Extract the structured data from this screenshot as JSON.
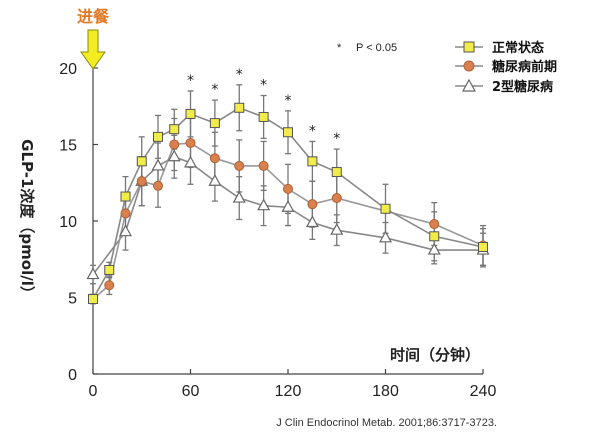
{
  "chart_data": {
    "type": "line",
    "xlabel": "时间（分钟）",
    "ylabel": "GLP-1浓度（pmol/l）",
    "xlim": [
      0,
      240
    ],
    "ylim": [
      0,
      20
    ],
    "x_ticks": [
      0,
      60,
      120,
      180,
      240
    ],
    "y_ticks": [
      0,
      5,
      10,
      15,
      20
    ],
    "grid": false,
    "legend_position": "top-right",
    "annotation_meal": "进餐",
    "significance_note": "P < 0.05",
    "significance_symbol": "*",
    "significance_x": [
      60,
      75,
      90,
      105,
      120,
      135,
      150
    ],
    "source": "J Clin Endocrinol Metab. 2001;86:3717-3723.",
    "series": [
      {
        "name": "正常状态",
        "marker": "square",
        "color": "#f2ec4a",
        "x": [
          0,
          10,
          20,
          30,
          40,
          50,
          60,
          75,
          90,
          105,
          120,
          135,
          150,
          180,
          210,
          240
        ],
        "y": [
          4.9,
          6.8,
          11.6,
          13.9,
          15.5,
          16.0,
          17.0,
          16.4,
          17.4,
          16.8,
          15.8,
          13.9,
          13.2,
          10.8,
          9.0,
          8.3
        ],
        "err": [
          0.3,
          0.5,
          1.3,
          1.6,
          1.4,
          1.3,
          1.5,
          1.5,
          1.5,
          1.4,
          1.4,
          1.3,
          1.5,
          1.6,
          1.6,
          1.2
        ]
      },
      {
        "name": "糖尿病前期",
        "marker": "circle",
        "color": "#d98050",
        "x": [
          0,
          10,
          20,
          30,
          40,
          50,
          60,
          75,
          90,
          105,
          120,
          135,
          150,
          210,
          240
        ],
        "y": [
          4.9,
          5.8,
          10.5,
          12.6,
          12.3,
          15.0,
          15.1,
          14.1,
          13.6,
          13.6,
          12.1,
          11.1,
          11.5,
          9.8,
          8.4
        ],
        "err": [
          0.3,
          0.6,
          1.3,
          1.6,
          1.4,
          1.7,
          1.6,
          1.7,
          1.7,
          1.6,
          1.6,
          1.5,
          1.6,
          1.4,
          1.3
        ]
      },
      {
        "name": "2型糖尿病",
        "marker": "triangle",
        "color": "#ffffff",
        "x": [
          0,
          20,
          30,
          40,
          50,
          60,
          75,
          90,
          105,
          120,
          135,
          150,
          180,
          210,
          240
        ],
        "y": [
          6.5,
          9.3,
          12.6,
          13.6,
          14.2,
          13.8,
          12.6,
          11.5,
          11.0,
          10.9,
          9.9,
          9.4,
          8.9,
          8.1,
          8.1
        ],
        "err": [
          0.6,
          1.2,
          1.6,
          1.5,
          1.4,
          1.4,
          1.3,
          1.4,
          1.3,
          1.2,
          1.1,
          1.0,
          1.0,
          0.9,
          1.1
        ]
      }
    ]
  }
}
